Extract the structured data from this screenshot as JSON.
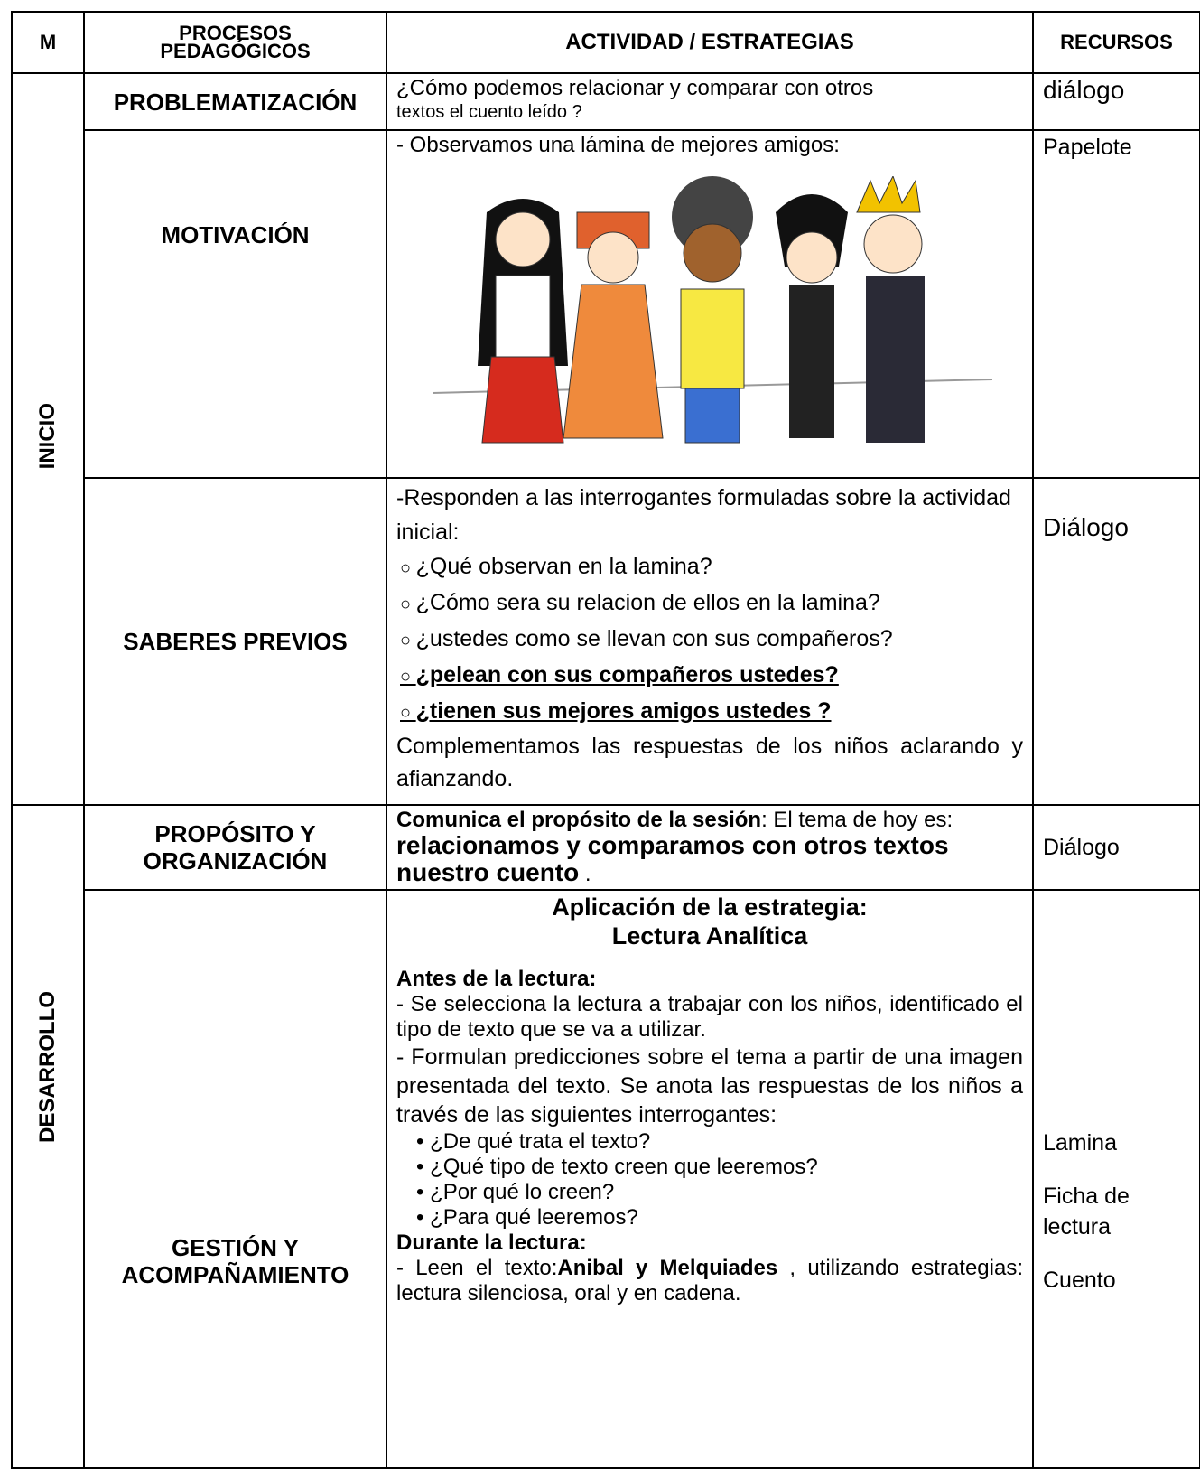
{
  "header": {
    "m": "M",
    "processes": "PROCESOS PEDAGÓGICOS",
    "activity": "ACTIVIDAD / ESTRATEGIAS",
    "resources": "RECURSOS"
  },
  "phases": [
    "INICIO",
    "DESARROLLO"
  ],
  "rows": [
    {
      "process": "PROBLEMATIZACIÓN",
      "activity": [
        "¿Cómo podemos  relacionar y comparar con otros",
        "textos el cuento leído  ?"
      ],
      "resources": [
        "diálogo"
      ]
    },
    {
      "process": "MOTIVACIÓN",
      "activity": [
        "- Observamos una lámina de mejores amigos:"
      ],
      "resources": [
        "Papelote"
      ]
    },
    {
      "process": "SABERES PREVIOS",
      "activity": [
        "-Responden a las interrogantes formuladas sobre la actividad inicial:",
        "¿Qué observan en la lamina?",
        "¿Cómo sera su relacion de ellos en la lamina?",
        "¿ustedes como se llevan con sus compañeros?",
        "¿pelean con sus compañeros ustedes?",
        "¿tienen sus mejores amigos ustedes ?",
        "Complementamos las respuestas de los niños aclarando y afianzando."
      ],
      "resources": [
        "Diálogo"
      ]
    },
    {
      "process": "PROPÓSITO Y ORGANIZACIÓN",
      "activity": [
        "Comunica el propósito de la sesión",
        ": El tema de hoy es: ",
        "relacionamos y comparamos con otros textos nuestro cuento",
        " ."
      ],
      "resources": [
        "Diálogo"
      ]
    },
    {
      "process": "GESTIÓN Y ACOMPAÑAMIENTO",
      "activity": [
        "Aplicación de la estrategia:",
        "Lectura Analítica",
        "Antes de la lectura:",
        "- Se selecciona la lectura a trabajar con los niños, identificado el tipo de texto que se va a utilizar.",
        "- Formulan predicciones sobre el tema a partir de una imagen presentada del texto. Se anota las respuestas de los niños a través de las siguientes interrogantes:",
        "¿De qué trata el texto?",
        "¿Qué tipo de texto creen que leeremos?",
        "¿Por qué lo creen?",
        "¿Para qué leeremos?",
        "Durante la lectura:",
        "- Leen el texto:",
        "Anibal y Melquiades",
        " , utilizando estrategias: lectura silenciosa, oral y en cadena."
      ],
      "resources": [
        "Lamina",
        "Ficha de lectura",
        "Cuento"
      ]
    }
  ]
}
